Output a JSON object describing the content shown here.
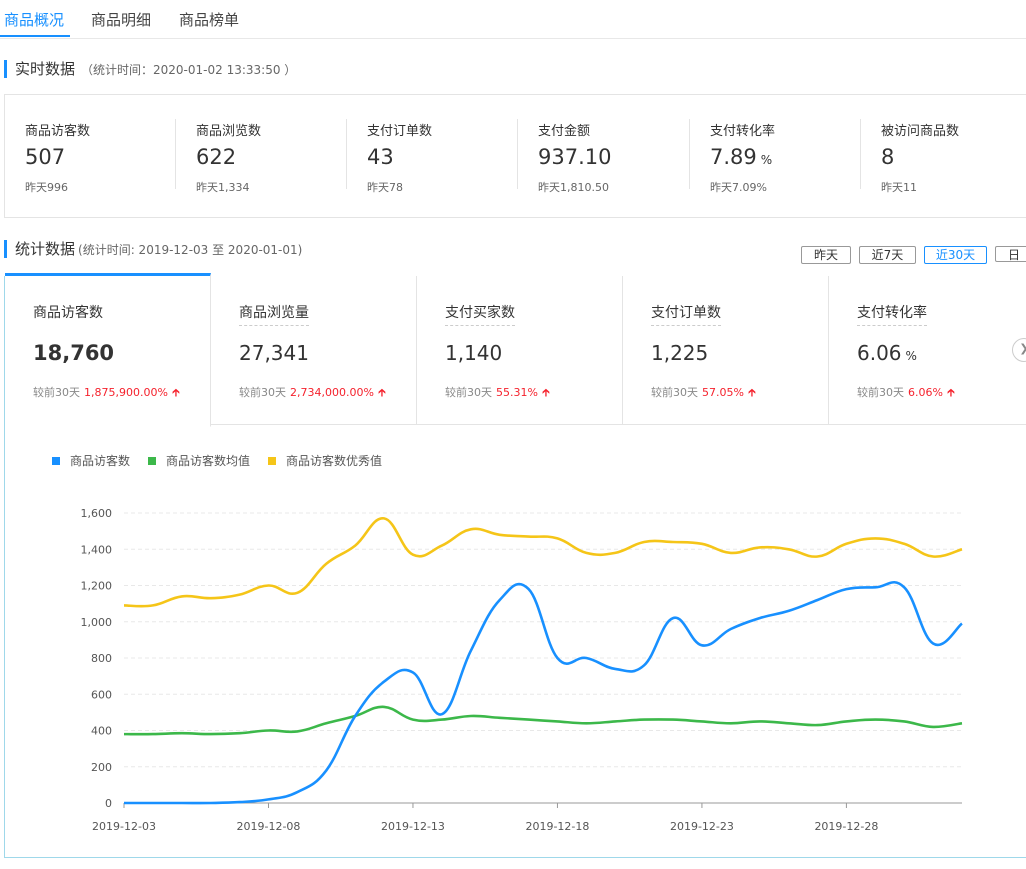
{
  "tabs": [
    "商品概况",
    "商品明细",
    "商品榜单"
  ],
  "realtime": {
    "title": "实时数据",
    "stat_time": "（统计时间：2020-01-02 13:33:50 ）",
    "metrics": [
      {
        "label": "商品访客数",
        "value": "507",
        "unit": "",
        "compare": "昨天996"
      },
      {
        "label": "商品浏览数",
        "value": "622",
        "unit": "",
        "compare": "昨天1,334"
      },
      {
        "label": "支付订单数",
        "value": "43",
        "unit": "",
        "compare": "昨天78"
      },
      {
        "label": "支付金额",
        "value": "937.10",
        "unit": "",
        "compare": "昨天1,810.50"
      },
      {
        "label": "支付转化率",
        "value": "7.89",
        "unit": "%",
        "compare": "昨天7.09%"
      },
      {
        "label": "被访问商品数",
        "value": "8",
        "unit": "",
        "compare": "昨天11"
      }
    ]
  },
  "statistics": {
    "title": "统计数据",
    "stat_time": "(统计时间: 2019-12-03 至 2020-01-01)",
    "ranges": [
      "昨天",
      "近7天",
      "近30天",
      "日"
    ],
    "active_range": "近30天",
    "cards": [
      {
        "label": "商品访客数",
        "value": "18,760",
        "unit": "",
        "compare_label": "较前30天",
        "change": "1,875,900.00%"
      },
      {
        "label": "商品浏览量",
        "value": "27,341",
        "unit": "",
        "compare_label": "较前30天",
        "change": "2,734,000.00%"
      },
      {
        "label": "支付买家数",
        "value": "1,140",
        "unit": "",
        "compare_label": "较前30天",
        "change": "55.31%"
      },
      {
        "label": "支付订单数",
        "value": "1,225",
        "unit": "",
        "compare_label": "较前30天",
        "change": "57.05%"
      },
      {
        "label": "支付转化率",
        "value": "6.06",
        "unit": "%",
        "compare_label": "较前30天",
        "change": "6.06%"
      }
    ]
  },
  "chart_data": {
    "type": "line",
    "legend": [
      {
        "name": "商品访客数",
        "color": "#1890ff"
      },
      {
        "name": "商品访客数均值",
        "color": "#3cb84a"
      },
      {
        "name": "商品访客数优秀值",
        "color": "#f5c518"
      }
    ],
    "x_labels": [
      "2019-12-03",
      "2019-12-08",
      "2019-12-13",
      "2019-12-18",
      "2019-12-23",
      "2019-12-28"
    ],
    "x_label_every": 5,
    "y_ticks": [
      "0",
      "200",
      "400",
      "600",
      "800",
      "1,000",
      "1,200",
      "1,400",
      "1,600"
    ],
    "ylim": [
      0,
      1600
    ],
    "series": [
      {
        "name": "商品访客数",
        "color": "#1890ff",
        "values": [
          0,
          0,
          0,
          0,
          5,
          20,
          60,
          180,
          480,
          670,
          720,
          490,
          840,
          1120,
          1180,
          800,
          800,
          740,
          760,
          1020,
          870,
          960,
          1020,
          1060,
          1120,
          1180,
          1190,
          1190,
          880,
          990
        ]
      },
      {
        "name": "商品访客数均值",
        "color": "#3cb84a",
        "values": [
          380,
          380,
          385,
          380,
          385,
          400,
          395,
          440,
          480,
          530,
          460,
          460,
          480,
          470,
          460,
          450,
          440,
          450,
          460,
          460,
          450,
          440,
          450,
          440,
          430,
          450,
          460,
          450,
          420,
          440
        ]
      },
      {
        "name": "商品访客数优秀值",
        "color": "#f5c518",
        "values": [
          1090,
          1090,
          1140,
          1130,
          1150,
          1200,
          1160,
          1320,
          1420,
          1570,
          1370,
          1420,
          1510,
          1480,
          1470,
          1460,
          1380,
          1380,
          1440,
          1440,
          1430,
          1380,
          1410,
          1400,
          1360,
          1430,
          1460,
          1430,
          1360,
          1400
        ]
      }
    ]
  }
}
